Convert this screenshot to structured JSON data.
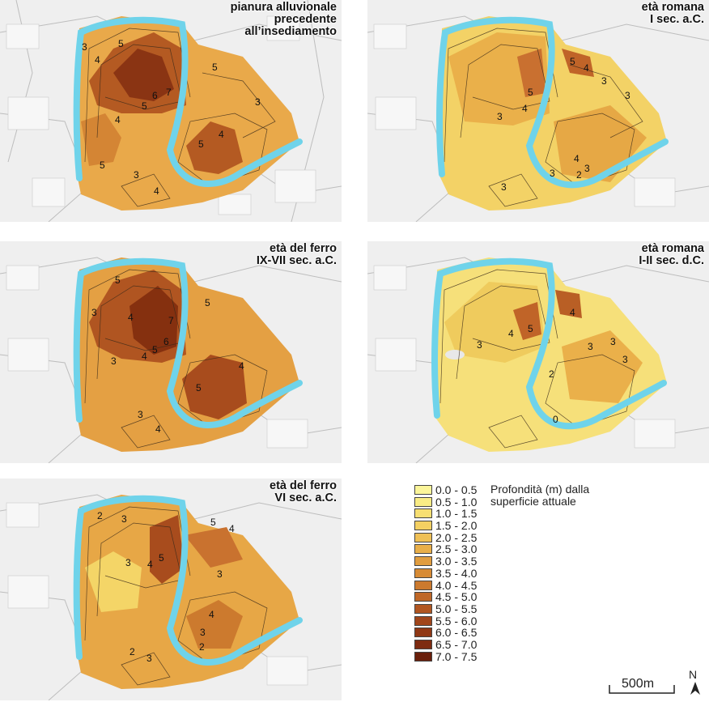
{
  "panels": [
    {
      "id": "p1",
      "title_lines": [
        "pianura alluvionale",
        "precedente",
        "all’insediamento"
      ],
      "labels": [
        "3",
        "4",
        "5",
        "5",
        "6",
        "7",
        "5",
        "4",
        "4",
        "3",
        "5",
        "5",
        "3",
        "4"
      ]
    },
    {
      "id": "p2",
      "title_lines": [
        "età romana",
        "I sec. a.C."
      ],
      "labels": [
        "5",
        "4",
        "5",
        "4",
        "3",
        "3",
        "3",
        "4",
        "2",
        "3",
        "3",
        "3"
      ]
    },
    {
      "id": "p3",
      "title_lines": [
        "età del ferro",
        "IX-VII sec. a.C."
      ],
      "labels": [
        "5",
        "3",
        "4",
        "7",
        "6",
        "5",
        "4",
        "3",
        "5",
        "4",
        "5",
        "3",
        "4"
      ]
    },
    {
      "id": "p4",
      "title_lines": [
        "età romana",
        "I-II sec. d.C."
      ],
      "labels": [
        "4",
        "5",
        "4",
        "3",
        "3",
        "2",
        "3",
        "0",
        "3"
      ]
    },
    {
      "id": "p5",
      "title_lines": [
        "età del ferro",
        "VI sec. a.C."
      ],
      "labels": [
        "2",
        "3",
        "3",
        "4",
        "5",
        "5",
        "4",
        "3",
        "3",
        "4",
        "2",
        "3",
        "2"
      ]
    }
  ],
  "legend": {
    "caption_lines": [
      "Profondità (m) dalla",
      "superficie attuale"
    ],
    "classes": [
      {
        "label": "0.0 - 0.5",
        "color": "#fbf59a"
      },
      {
        "label": "0.5 - 1.0",
        "color": "#f9ec85"
      },
      {
        "label": "1.0 - 1.5",
        "color": "#f7df72"
      },
      {
        "label": "1.5 - 2.0",
        "color": "#f4d062"
      },
      {
        "label": "2.0 - 2.5",
        "color": "#efc056"
      },
      {
        "label": "2.5 - 3.0",
        "color": "#e9af49"
      },
      {
        "label": "3.0 - 3.5",
        "color": "#e19d3f"
      },
      {
        "label": "3.5 - 4.0",
        "color": "#d78b35"
      },
      {
        "label": "4.0 - 4.5",
        "color": "#cc7a2e"
      },
      {
        "label": "4.5 - 5.0",
        "color": "#bf6727"
      },
      {
        "label": "5.0 - 5.5",
        "color": "#b15621"
      },
      {
        "label": "5.5 - 6.0",
        "color": "#a1461b"
      },
      {
        "label": "6.0 - 6.5",
        "color": "#903815"
      },
      {
        "label": "6.5 - 7.0",
        "color": "#7e2b10"
      },
      {
        "label": "7.0 - 7.5",
        "color": "#6a1f0b"
      }
    ]
  },
  "scale": {
    "label": "500m"
  },
  "north": {
    "label": "N"
  },
  "river_color": "#6fd3ea"
}
